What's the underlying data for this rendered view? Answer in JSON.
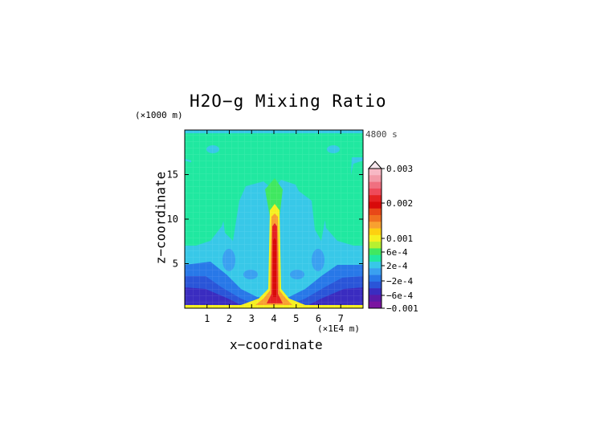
{
  "chart_data": {
    "type": "heatmap",
    "title": "H2O−g Mixing Ratio",
    "xlabel": "x−coordinate",
    "ylabel": "z−coordinate",
    "x_units": "(×1E4 m)",
    "z_units": "(×1000 m)",
    "time_label": "4800 s",
    "xlim": [
      0,
      8
    ],
    "ylim": [
      0,
      20
    ],
    "x_ticks": [
      "1",
      "2",
      "3",
      "4",
      "5",
      "6",
      "7"
    ],
    "y_ticks": [
      "5",
      "10",
      "15"
    ],
    "colorbar": {
      "labels": [
        "0.003",
        "0.002",
        "0.001",
        "6e-4",
        "2e-4",
        "−2e-4",
        "−6e-4",
        "−0.001"
      ],
      "colors": [
        "#f7b8c4",
        "#f39aa7",
        "#f07080",
        "#ee4a5a",
        "#e52222",
        "#d80a0a",
        "#e84818",
        "#f07020",
        "#f8a030",
        "#fdd010",
        "#f5f020",
        "#b8f030",
        "#40e860",
        "#20e8a0",
        "#38c8e8",
        "#3aa0f0",
        "#2878e8",
        "#2a55d8",
        "#3a2cc0",
        "#5a1aa8",
        "#7a14a0"
      ]
    },
    "grid": false,
    "legend": "colorbar right"
  }
}
